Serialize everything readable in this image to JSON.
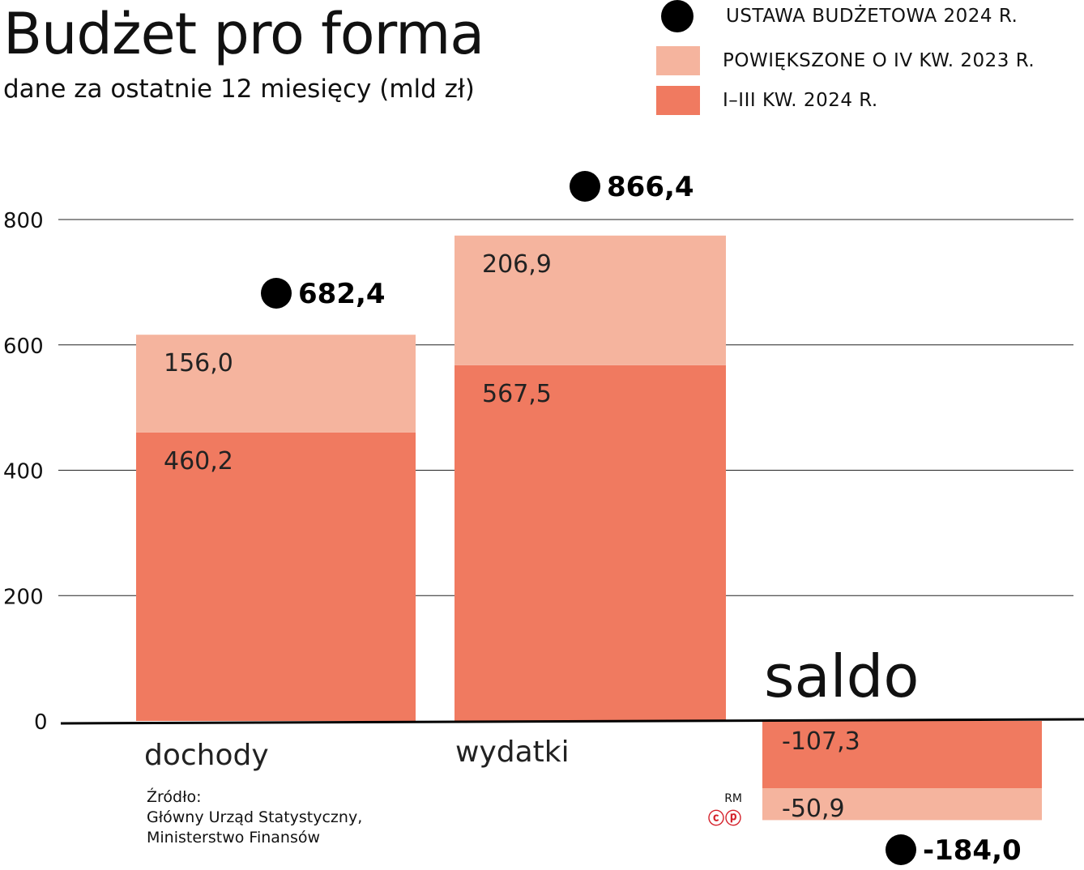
{
  "chart_data": {
    "type": "bar",
    "stacked": true,
    "title": "Budżet pro forma",
    "subtitle": "dane za ostatnie 12 miesięcy (mld zł)",
    "categories": [
      "dochody",
      "wydatki",
      "saldo"
    ],
    "category_label_saldo_large": true,
    "series": [
      {
        "name": "I–III KW. 2024 R.",
        "values": [
          460.2,
          567.5,
          -107.3
        ],
        "labels": [
          "460,2",
          "567,5",
          "-107,3"
        ],
        "color": "#f07a60"
      },
      {
        "name": "POWIĘKSZONE O IV KW. 2023 R.",
        "values": [
          156.0,
          206.9,
          -50.9
        ],
        "labels": [
          "156,0",
          "206,9",
          "-50,9"
        ],
        "color": "#f5b49e"
      }
    ],
    "markers": {
      "name": "USTAWA BUDŻETOWA 2024 R.",
      "values": [
        682.4,
        866.4,
        -184.0
      ],
      "labels": [
        "682,4",
        "866,4",
        "-184,0"
      ],
      "color": "#000000"
    },
    "yticks": [
      0,
      200,
      400,
      600,
      800
    ],
    "ylim": [
      -200,
      850
    ],
    "grid": true,
    "legend_position": "top-right"
  },
  "source": {
    "heading": "Źródło:",
    "line1": "Główny Urząd Statystyczny,",
    "line2": "Ministerstwo Finansów"
  },
  "credit": {
    "initials": "RM",
    "marks": "ⓒⓟ"
  }
}
